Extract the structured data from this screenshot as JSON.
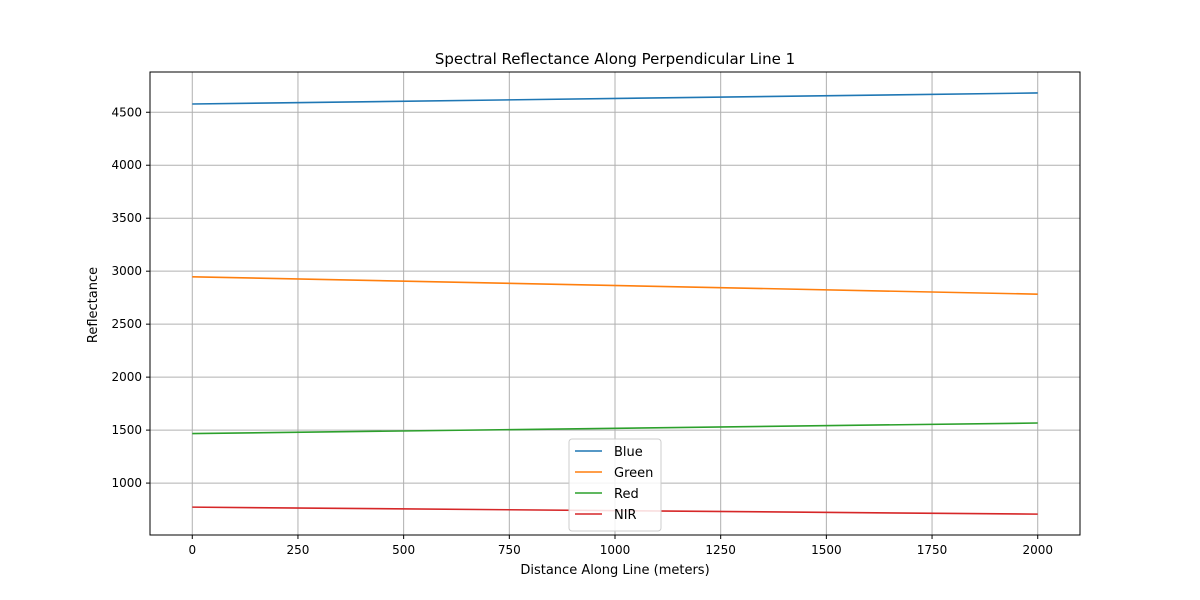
{
  "chart_data": {
    "type": "line",
    "title": "Spectral Reflectance Along Perpendicular Line 1",
    "xlabel": "Distance Along Line (meters)",
    "ylabel": "Reflectance",
    "xlim": [
      -100,
      2100
    ],
    "ylim": [
      510,
      4880
    ],
    "xticks": [
      0,
      250,
      500,
      750,
      1000,
      1250,
      1500,
      1750,
      2000
    ],
    "yticks": [
      1000,
      1500,
      2000,
      2500,
      3000,
      3500,
      4000,
      4500
    ],
    "grid": true,
    "legend_position": "lower center",
    "x": [
      0,
      2000
    ],
    "series": [
      {
        "name": "Blue",
        "color": "#1f77b4",
        "values": [
          4578,
          4682
        ]
      },
      {
        "name": "Green",
        "color": "#ff7f0e",
        "values": [
          2947,
          2783
        ]
      },
      {
        "name": "Red",
        "color": "#2ca02c",
        "values": [
          1467,
          1567
        ]
      },
      {
        "name": "NIR",
        "color": "#d62728",
        "values": [
          773,
          707
        ]
      }
    ]
  }
}
